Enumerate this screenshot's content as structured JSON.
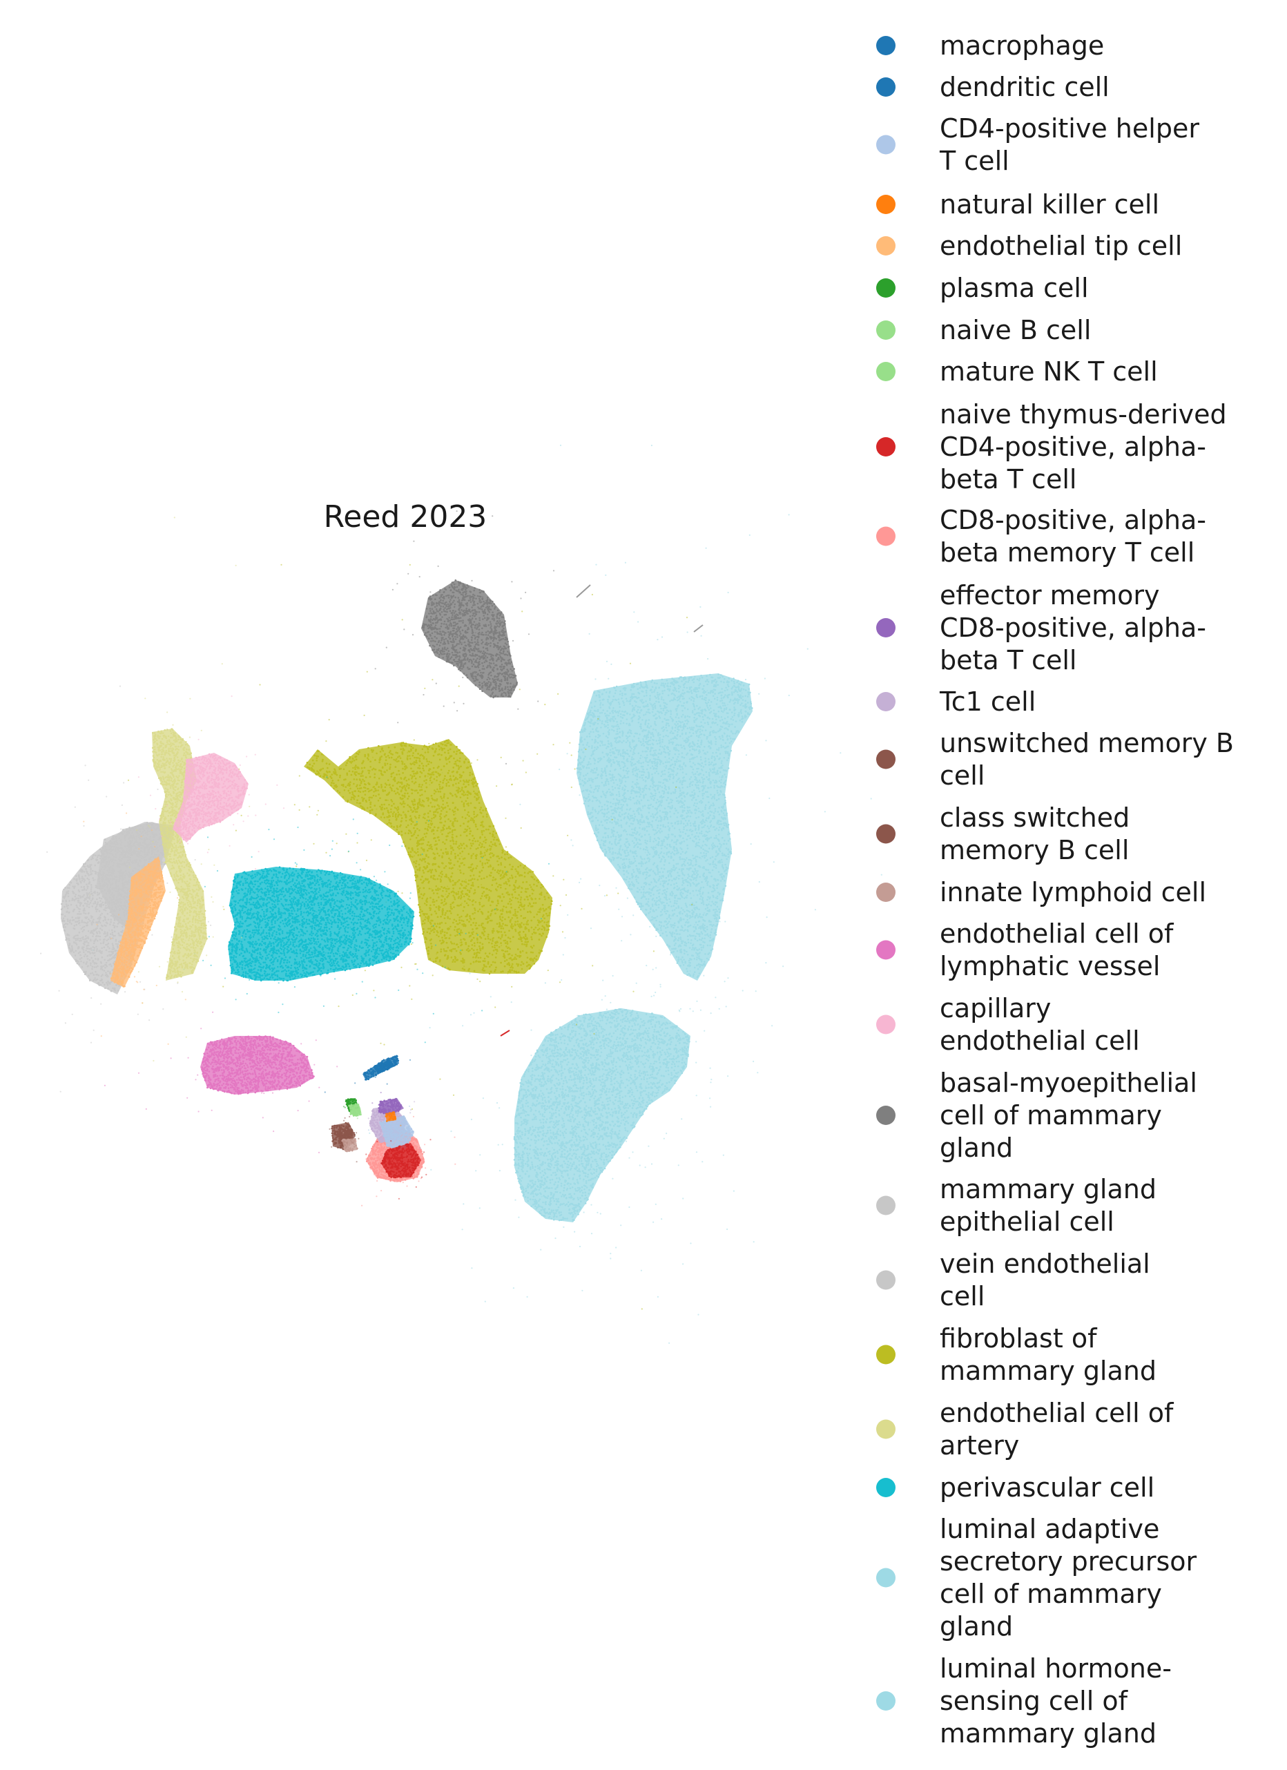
{
  "chart_data": {
    "type": "scatter",
    "title": "Reed 2023",
    "xlabel": "",
    "ylabel": "",
    "axes_visible": false,
    "grid": false,
    "legend_placement": "right, outside plot",
    "legend": [
      {
        "label": "macrophage",
        "color": "#1f77b4"
      },
      {
        "label": "dendritic cell",
        "color": "#1f77b4"
      },
      {
        "label": "CD4-positive helper T cell",
        "color": "#aec7e8"
      },
      {
        "label": "natural killer cell",
        "color": "#ff7f0e"
      },
      {
        "label": "endothelial tip cell",
        "color": "#ffbb78"
      },
      {
        "label": "plasma cell",
        "color": "#2ca02c"
      },
      {
        "label": "naive B cell",
        "color": "#98df8a"
      },
      {
        "label": "mature NK T cell",
        "color": "#98df8a"
      },
      {
        "label": "naive thymus-derived CD4-positive, alpha-beta T cell",
        "color": "#d62728"
      },
      {
        "label": "CD8-positive, alpha-beta memory T cell",
        "color": "#ff9896"
      },
      {
        "label": "effector memory CD8-positive, alpha-beta T cell",
        "color": "#9467bd"
      },
      {
        "label": "Tc1 cell",
        "color": "#c5b0d5"
      },
      {
        "label": "unswitched memory B cell",
        "color": "#8c564b"
      },
      {
        "label": "class switched memory B cell",
        "color": "#8c564b"
      },
      {
        "label": "innate lymphoid cell",
        "color": "#c49c94"
      },
      {
        "label": "endothelial cell of lymphatic vessel",
        "color": "#e377c2"
      },
      {
        "label": "capillary endothelial cell",
        "color": "#f7b6d2"
      },
      {
        "label": "basal-myoepithelial cell of mammary gland",
        "color": "#7f7f7f"
      },
      {
        "label": "mammary gland epithelial cell",
        "color": "#c7c7c7"
      },
      {
        "label": "vein endothelial cell",
        "color": "#c7c7c7"
      },
      {
        "label": "fibroblast of mammary gland",
        "color": "#bcbd22"
      },
      {
        "label": "endothelial cell of artery",
        "color": "#dbdb8d"
      },
      {
        "label": "perivascular cell",
        "color": "#17becf"
      },
      {
        "label": "luminal adaptive secretory precursor cell of mammary gland",
        "color": "#9edae5"
      },
      {
        "label": "luminal hormone-sensing cell of mammary gland",
        "color": "#9edae5"
      }
    ],
    "series": [
      {
        "name": "luminal hormone-sensing cell of mammary gland"
      },
      {
        "name": "luminal adaptive secretory precursor cell of mammary gland"
      },
      {
        "name": "fibroblast of mammary gland"
      },
      {
        "name": "perivascular cell"
      },
      {
        "name": "basal-myoepithelial cell of mammary gland"
      },
      {
        "name": "mammary gland epithelial cell"
      },
      {
        "name": "vein endothelial cell"
      },
      {
        "name": "endothelial cell of artery"
      },
      {
        "name": "capillary endothelial cell"
      },
      {
        "name": "endothelial tip cell"
      },
      {
        "name": "endothelial cell of lymphatic vessel"
      },
      {
        "name": "CD8-positive, alpha-beta memory T cell"
      },
      {
        "name": "Tc1 cell"
      },
      {
        "name": "CD4-positive helper T cell"
      },
      {
        "name": "effector memory CD8-positive, alpha-beta T cell"
      },
      {
        "name": "naive thymus-derived CD4-positive, alpha-beta T cell"
      },
      {
        "name": "unswitched memory B cell"
      },
      {
        "name": "class switched memory B cell"
      },
      {
        "name": "innate lymphoid cell"
      },
      {
        "name": "plasma cell"
      },
      {
        "name": "naive B cell"
      },
      {
        "name": "mature NK T cell"
      },
      {
        "name": "natural killer cell"
      },
      {
        "name": "macrophage"
      },
      {
        "name": "dendritic cell"
      }
    ]
  }
}
